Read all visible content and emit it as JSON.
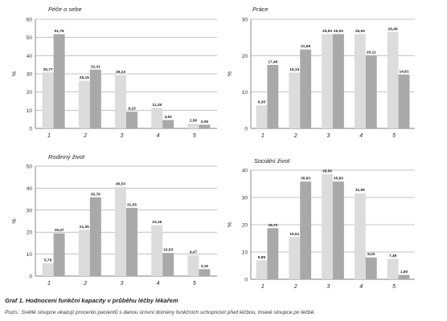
{
  "caption": "Graf 1. Hodnocení funkční kapacity v průběhu léčby lékařem",
  "note": "Pozn.: Světlé sloupce ukazují procento pacientů s danou úrovní domény funkčních schopností před léčbou, tmavé sloupce po léčbě.",
  "colors": {
    "before": "#dcdcdc",
    "after": "#a9a9a9",
    "axis": "#555555",
    "grid": "#888888"
  },
  "chart_data": [
    {
      "type": "bar",
      "title": "Péče o sebe",
      "ylabel": "%",
      "categories": [
        "1",
        "2",
        "3",
        "4",
        "5"
      ],
      "ylim": [
        0,
        60
      ],
      "yticks": [
        0,
        10,
        20,
        30,
        40,
        50,
        60
      ],
      "series": [
        {
          "values": [
            30.77,
            26.15,
            29.23,
            11.28,
            2.56
          ],
          "labels": [
            "30,77",
            "26,15",
            "29,23",
            "11,28",
            "2,56"
          ]
        },
        {
          "values": [
            51.79,
            32.31,
            9.23,
            4.62,
            2.05
          ],
          "labels": [
            "51,79",
            "32,31",
            "9,23",
            "4,62",
            "2,05"
          ]
        }
      ]
    },
    {
      "type": "bar",
      "title": "Práce",
      "ylabel": "%",
      "categories": [
        "1",
        "2",
        "3",
        "4",
        "5"
      ],
      "ylim": [
        0,
        30
      ],
      "yticks": [
        0,
        10,
        20,
        30
      ],
      "series": [
        {
          "values": [
            6.35,
            15.34,
            25.93,
            25.93,
            26.46
          ],
          "labels": [
            "6,35",
            "15,34",
            "25,93",
            "25,93",
            "26,46"
          ]
        },
        {
          "values": [
            17.46,
            21.69,
            25.93,
            20.11,
            14.81
          ],
          "labels": [
            "17,46",
            "21,69",
            "25,93",
            "20,11",
            "14,81"
          ]
        }
      ]
    },
    {
      "type": "bar",
      "title": "Rodinný život",
      "ylabel": "%",
      "categories": [
        "1",
        "2",
        "3",
        "4",
        "5"
      ],
      "ylim": [
        0,
        50
      ],
      "yticks": [
        0,
        10,
        20,
        30,
        40,
        50
      ],
      "series": [
        {
          "values": [
            5.79,
            21.05,
            40.53,
            23.16,
            9.47
          ],
          "labels": [
            "5,79",
            "21,05",
            "40,53",
            "23,16",
            "9,47"
          ]
        },
        {
          "values": [
            19.47,
            35.79,
            31.05,
            10.53,
            3.16
          ],
          "labels": [
            "19,47",
            "35,79",
            "31,05",
            "10,53",
            "3,16"
          ]
        }
      ]
    },
    {
      "type": "bar",
      "title": "Sociální život",
      "ylabel": "%",
      "categories": [
        "1",
        "2",
        "3",
        "4",
        "5"
      ],
      "ylim": [
        0,
        40
      ],
      "yticks": [
        0,
        10,
        20,
        30,
        40
      ],
      "series": [
        {
          "values": [
            6.95,
            15.51,
            38.5,
            31.55,
            7.49
          ],
          "labels": [
            "6,95",
            "15,51",
            "38,50",
            "31,55",
            "7,49"
          ]
        },
        {
          "values": [
            18.72,
            35.83,
            35.83,
            8.02,
            1.6
          ],
          "labels": [
            "18,72",
            "35,83",
            "35,83",
            "8,02",
            "1,60"
          ]
        }
      ]
    }
  ]
}
